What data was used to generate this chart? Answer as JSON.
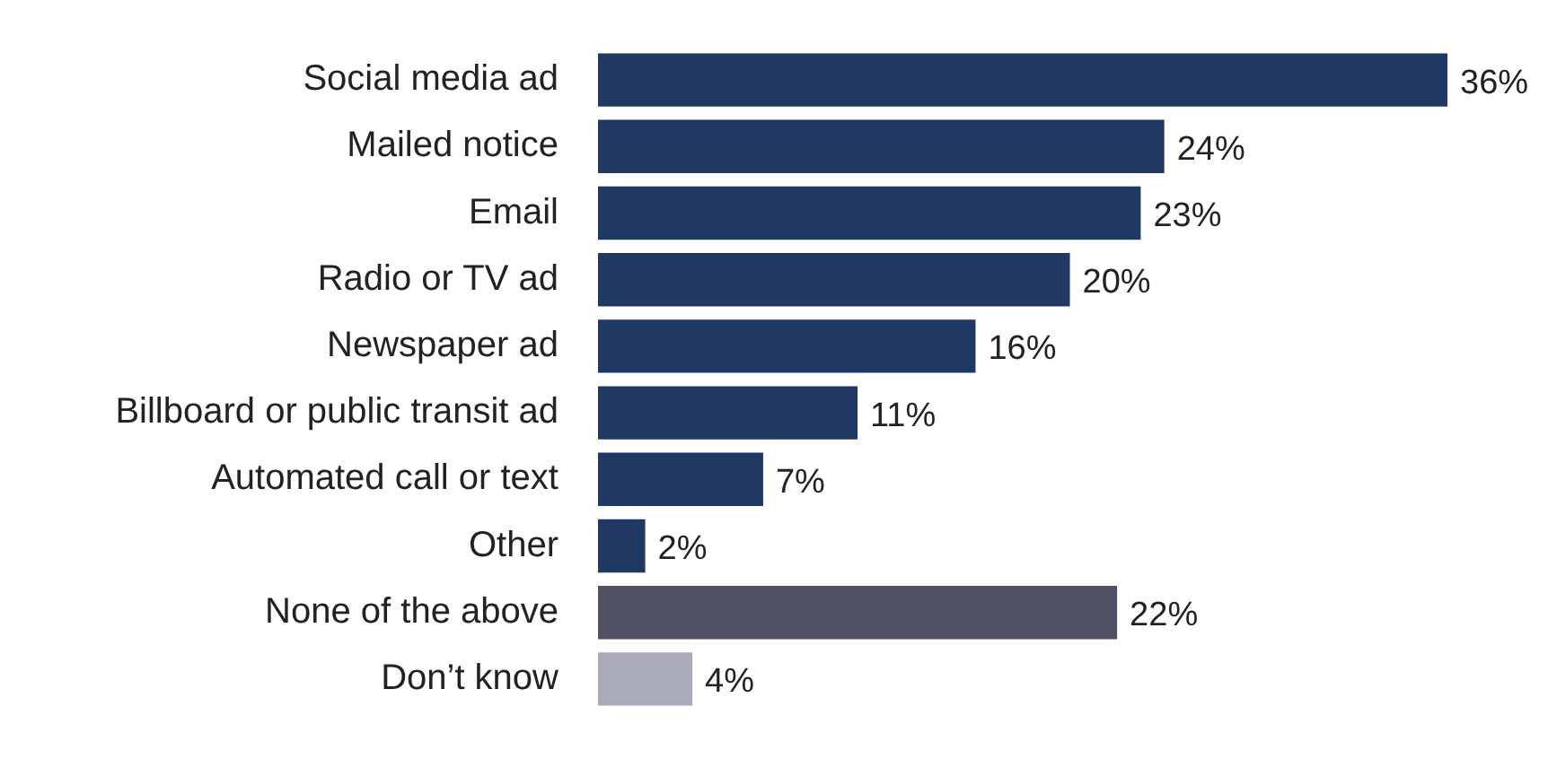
{
  "chart_data": {
    "type": "bar",
    "orientation": "horizontal",
    "categories": [
      "Social media ad",
      "Mailed notice",
      "Email",
      "Radio or TV ad",
      "Newspaper ad",
      "Billboard or public transit ad",
      "Automated call or text",
      "Other",
      "None of the above",
      "Don’t know"
    ],
    "values": [
      36,
      24,
      23,
      20,
      16,
      11,
      7,
      2,
      22,
      4
    ],
    "colors": [
      "#1f3864",
      "#1f3864",
      "#1f3864",
      "#1f3864",
      "#1f3864",
      "#1f3864",
      "#1f3864",
      "#1f3864",
      "#4f5163",
      "#a9abb8"
    ],
    "value_labels": [
      "36%",
      "24%",
      "23%",
      "20%",
      "16%",
      "11%",
      "7%",
      "2%",
      "22%",
      "4%"
    ],
    "legend": false
  }
}
